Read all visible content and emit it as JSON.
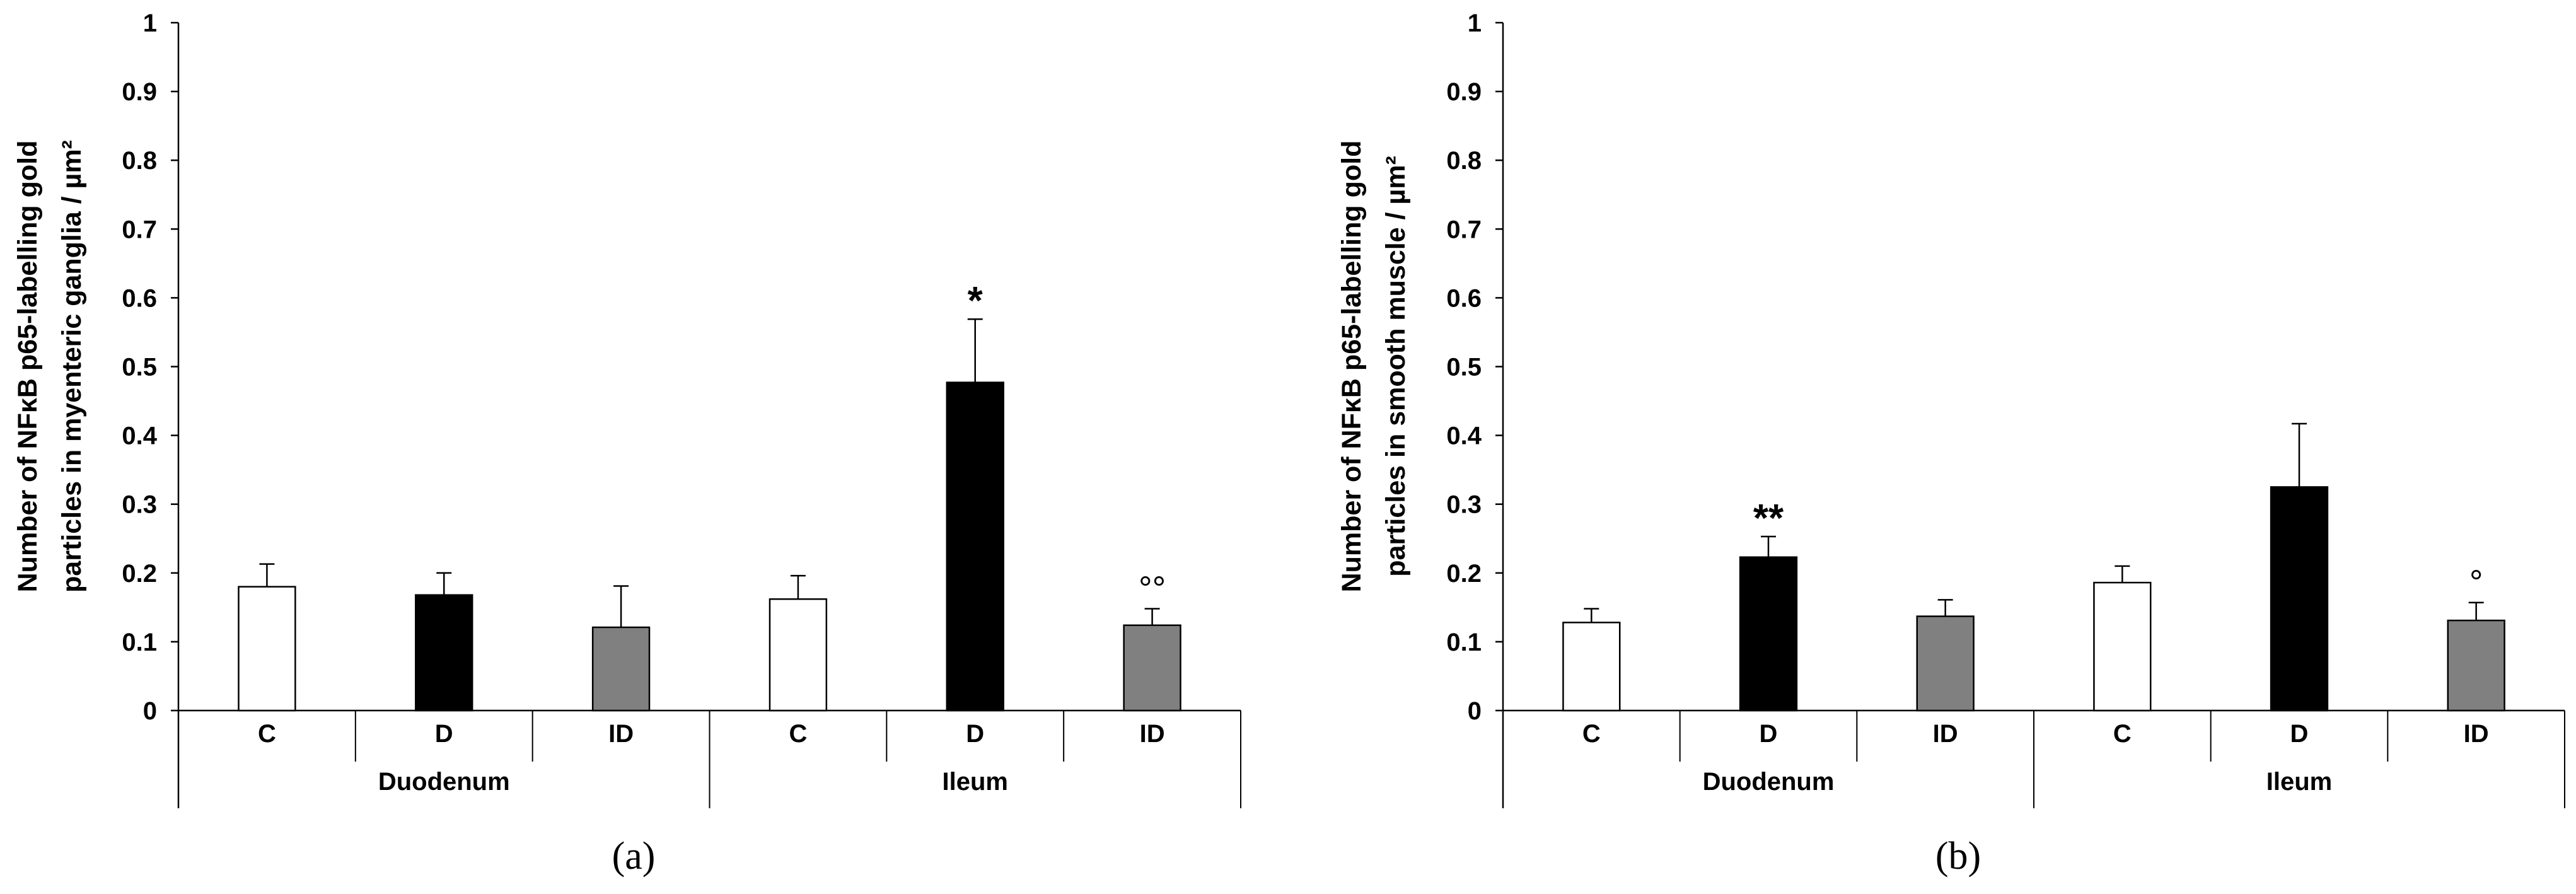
{
  "chart_data": [
    {
      "panel_label": "(a)",
      "type": "bar",
      "ylabel_line1": "Number of NFκB p65-labelling gold",
      "ylabel_line2": "particles in myenteric ganglia / µm²",
      "ylim": [
        0,
        1
      ],
      "yticks": [
        "0",
        "0.1",
        "0.2",
        "0.3",
        "0.4",
        "0.5",
        "0.6",
        "0.7",
        "0.8",
        "0.9",
        "1"
      ],
      "groups": [
        "Duodenum",
        "Ileum"
      ],
      "categories": [
        "C",
        "D",
        "ID",
        "C",
        "D",
        "ID"
      ],
      "values": [
        0.18,
        0.168,
        0.121,
        0.162,
        0.477,
        0.124
      ],
      "errors": [
        0.033,
        0.032,
        0.06,
        0.034,
        0.092,
        0.024
      ],
      "fills": [
        "#ffffff",
        "#000000",
        "#808080",
        "#ffffff",
        "#000000",
        "#808080"
      ],
      "annotations": [
        "",
        "",
        "",
        "",
        "*",
        "°°"
      ]
    },
    {
      "panel_label": "(b)",
      "type": "bar",
      "ylabel_line1": "Number of NFκB p65-labelling gold",
      "ylabel_line2": "particles in smooth muscle / µm²",
      "ylim": [
        0,
        1
      ],
      "yticks": [
        "0",
        "0.1",
        "0.2",
        "0.3",
        "0.4",
        "0.5",
        "0.6",
        "0.7",
        "0.8",
        "0.9",
        "1"
      ],
      "groups": [
        "Duodenum",
        "Ileum"
      ],
      "categories": [
        "C",
        "D",
        "ID",
        "C",
        "D",
        "ID"
      ],
      "values": [
        0.128,
        0.223,
        0.137,
        0.186,
        0.325,
        0.131
      ],
      "errors": [
        0.02,
        0.03,
        0.024,
        0.024,
        0.092,
        0.026
      ],
      "fills": [
        "#ffffff",
        "#000000",
        "#808080",
        "#ffffff",
        "#000000",
        "#808080"
      ],
      "annotations": [
        "",
        "**",
        "",
        "",
        "",
        "°"
      ]
    }
  ]
}
